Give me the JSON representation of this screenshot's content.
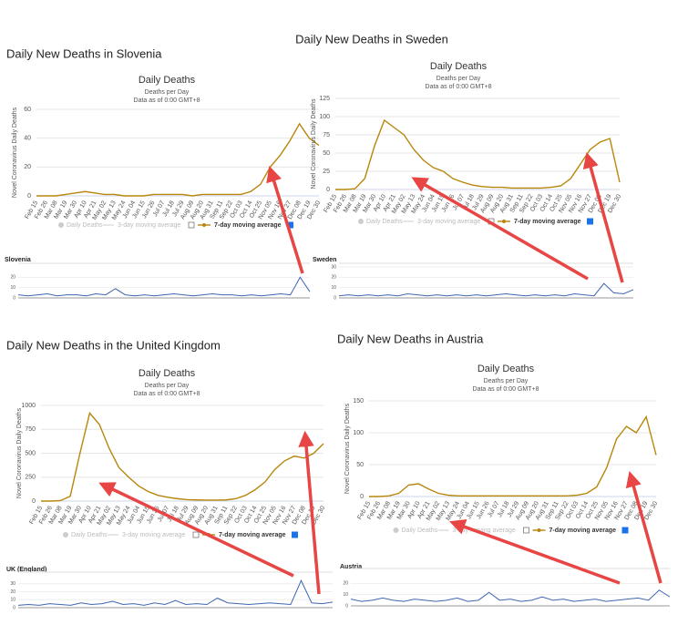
{
  "chart_data": [
    {
      "type": "line",
      "heading": "Daily New Deaths in Slovenia",
      "title": "Daily Deaths",
      "subtitle": "Deaths per Day",
      "note": "Data as of 0:00 GMT+8",
      "y_label": "Novel Coronavirus Daily Deaths",
      "categories": [
        "Feb 15",
        "Feb 26",
        "Mar 08",
        "Mar 19",
        "Mar 30",
        "Apr 10",
        "Apr 21",
        "May 02",
        "May 13",
        "May 24",
        "Jun 04",
        "Jun 15",
        "Jun 26",
        "Jul 07",
        "Jul 18",
        "Jul 29",
        "Aug 09",
        "Aug 20",
        "Aug 31",
        "Sep 11",
        "Sep 22",
        "Oct 03",
        "Oct 14",
        "Oct 25",
        "Nov 05",
        "Nov 16",
        "Nov 27",
        "Dec 08",
        "Dec 19",
        "Dec 30"
      ],
      "series": [
        {
          "name": "7-day moving average",
          "color": "#b8860b",
          "values": [
            0,
            0,
            0,
            1,
            2,
            3,
            2,
            1,
            1,
            0,
            0,
            0,
            1,
            1,
            1,
            1,
            0,
            1,
            1,
            1,
            1,
            1,
            3,
            8,
            20,
            28,
            38,
            50,
            40,
            35
          ]
        }
      ],
      "legend_inactive": [
        "Daily Deaths",
        "3-day moving average"
      ],
      "ylim": [
        0,
        60
      ],
      "yticks": [
        0,
        20,
        40,
        60
      ],
      "mini": {
        "label": "Slovenia",
        "color": "#3f66b0",
        "ylim": [
          0,
          30
        ],
        "yticks": [
          0,
          10,
          20
        ],
        "values": [
          3,
          2,
          3,
          4,
          2,
          3,
          3,
          2,
          4,
          3,
          9,
          3,
          2,
          3,
          2,
          3,
          4,
          3,
          2,
          3,
          4,
          3,
          3,
          2,
          3,
          2,
          3,
          4,
          3,
          20,
          6
        ]
      }
    },
    {
      "type": "line",
      "heading": "Daily New Deaths in Sweden",
      "title": "Daily Deaths",
      "subtitle": "Deaths per Day",
      "note": "Data as of 0:00 GMT+8",
      "y_label": "Novel Coronavirus Daily Deaths",
      "categories": [
        "Feb 15",
        "Feb 26",
        "Mar 08",
        "Mar 19",
        "Mar 30",
        "Apr 10",
        "Apr 21",
        "May 02",
        "May 13",
        "May 24",
        "Jun 04",
        "Jun 15",
        "Jun 26",
        "Jul 07",
        "Jul 18",
        "Jul 29",
        "Aug 09",
        "Aug 20",
        "Aug 31",
        "Sep 11",
        "Sep 22",
        "Oct 03",
        "Oct 14",
        "Oct 25",
        "Nov 05",
        "Nov 16",
        "Nov 27",
        "Dec 08",
        "Dec 19",
        "Dec 30"
      ],
      "series": [
        {
          "name": "7-day moving average",
          "color": "#b8860b",
          "values": [
            0,
            0,
            1,
            15,
            60,
            95,
            85,
            75,
            55,
            40,
            30,
            25,
            15,
            10,
            6,
            4,
            3,
            3,
            2,
            2,
            2,
            2,
            3,
            5,
            15,
            35,
            55,
            65,
            70,
            10
          ]
        }
      ],
      "legend_inactive": [
        "Daily Deaths",
        "3-day moving average"
      ],
      "ylim": [
        0,
        125
      ],
      "yticks": [
        0,
        25,
        50,
        75,
        100,
        125
      ],
      "mini": {
        "label": "Sweden",
        "color": "#3f66b0",
        "ylim": [
          0,
          30
        ],
        "yticks": [
          0,
          10,
          20,
          30
        ],
        "values": [
          2,
          3,
          2,
          3,
          2,
          3,
          2,
          4,
          3,
          2,
          3,
          2,
          3,
          2,
          3,
          2,
          3,
          4,
          3,
          2,
          3,
          2,
          3,
          2,
          4,
          3,
          2,
          14,
          5,
          4,
          8
        ]
      }
    },
    {
      "type": "line",
      "heading": "Daily New Deaths in the United Kingdom",
      "title": "Daily Deaths",
      "subtitle": "Deaths per Day",
      "note": "Data as of 0:00 GMT+8",
      "y_label": "Novel Coronavirus Daily Deaths",
      "categories": [
        "Feb 15",
        "Feb 26",
        "Mar 08",
        "Mar 19",
        "Mar 30",
        "Apr 10",
        "Apr 21",
        "May 02",
        "May 13",
        "May 24",
        "Jun 04",
        "Jun 15",
        "Jun 26",
        "Jul 07",
        "Jul 18",
        "Jul 29",
        "Aug 09",
        "Aug 20",
        "Aug 31",
        "Sep 11",
        "Sep 22",
        "Oct 03",
        "Oct 14",
        "Oct 25",
        "Nov 05",
        "Nov 16",
        "Nov 27",
        "Dec 08",
        "Dec 19",
        "Dec 30"
      ],
      "series": [
        {
          "name": "7-day moving average",
          "color": "#b8860b",
          "values": [
            0,
            0,
            5,
            50,
            500,
            920,
            800,
            550,
            350,
            250,
            160,
            100,
            60,
            40,
            25,
            15,
            12,
            10,
            10,
            12,
            25,
            60,
            120,
            200,
            330,
            420,
            470,
            450,
            500,
            600
          ]
        }
      ],
      "legend_inactive": [
        "Daily Deaths",
        "3-day moving average"
      ],
      "ylim": [
        0,
        1000
      ],
      "yticks": [
        0,
        250,
        500,
        750,
        1000
      ],
      "mini": {
        "label": "UK (England)",
        "color": "#3f66b0",
        "ylim": [
          0,
          40
        ],
        "yticks": [
          0,
          10,
          20,
          30
        ],
        "values": [
          3,
          4,
          3,
          5,
          4,
          3,
          6,
          4,
          5,
          8,
          4,
          5,
          3,
          6,
          4,
          9,
          4,
          5,
          4,
          12,
          6,
          5,
          4,
          5,
          6,
          5,
          4,
          34,
          6,
          5,
          7
        ]
      }
    },
    {
      "type": "line",
      "heading": "Daily New Deaths in Austria",
      "title": "Daily Deaths",
      "subtitle": "Deaths per Day",
      "note": "Data as of 0:00 GMT+8",
      "y_label": "Novel Coronavirus Daily Deaths",
      "categories": [
        "Feb 15",
        "Feb 26",
        "Mar 08",
        "Mar 19",
        "Mar 30",
        "Apr 10",
        "Apr 21",
        "May 02",
        "May 13",
        "May 24",
        "Jun 04",
        "Jun 15",
        "Jun 26",
        "Jul 07",
        "Jul 18",
        "Jul 29",
        "Aug 09",
        "Aug 20",
        "Aug 31",
        "Sep 11",
        "Sep 22",
        "Oct 03",
        "Oct 14",
        "Oct 25",
        "Nov 05",
        "Nov 16",
        "Nov 27",
        "Dec 08",
        "Dec 19",
        "Dec 30"
      ],
      "series": [
        {
          "name": "7-day moving average",
          "color": "#b8860b",
          "values": [
            0,
            0,
            1,
            5,
            18,
            20,
            12,
            5,
            2,
            1,
            1,
            1,
            1,
            1,
            1,
            1,
            1,
            1,
            1,
            1,
            1,
            2,
            5,
            15,
            45,
            90,
            110,
            100,
            125,
            65
          ]
        }
      ],
      "legend_inactive": [
        "Daily Deaths",
        "3-day moving average"
      ],
      "ylim": [
        0,
        150
      ],
      "yticks": [
        0,
        50,
        100,
        150
      ],
      "mini": {
        "label": "Austria",
        "color": "#3f66b0",
        "ylim": [
          0,
          30
        ],
        "yticks": [
          0,
          10,
          20
        ],
        "values": [
          6,
          4,
          5,
          7,
          5,
          4,
          6,
          5,
          4,
          5,
          7,
          4,
          5,
          12,
          5,
          6,
          4,
          5,
          8,
          5,
          6,
          4,
          5,
          6,
          4,
          5,
          6,
          7,
          5,
          14,
          8
        ]
      }
    }
  ]
}
